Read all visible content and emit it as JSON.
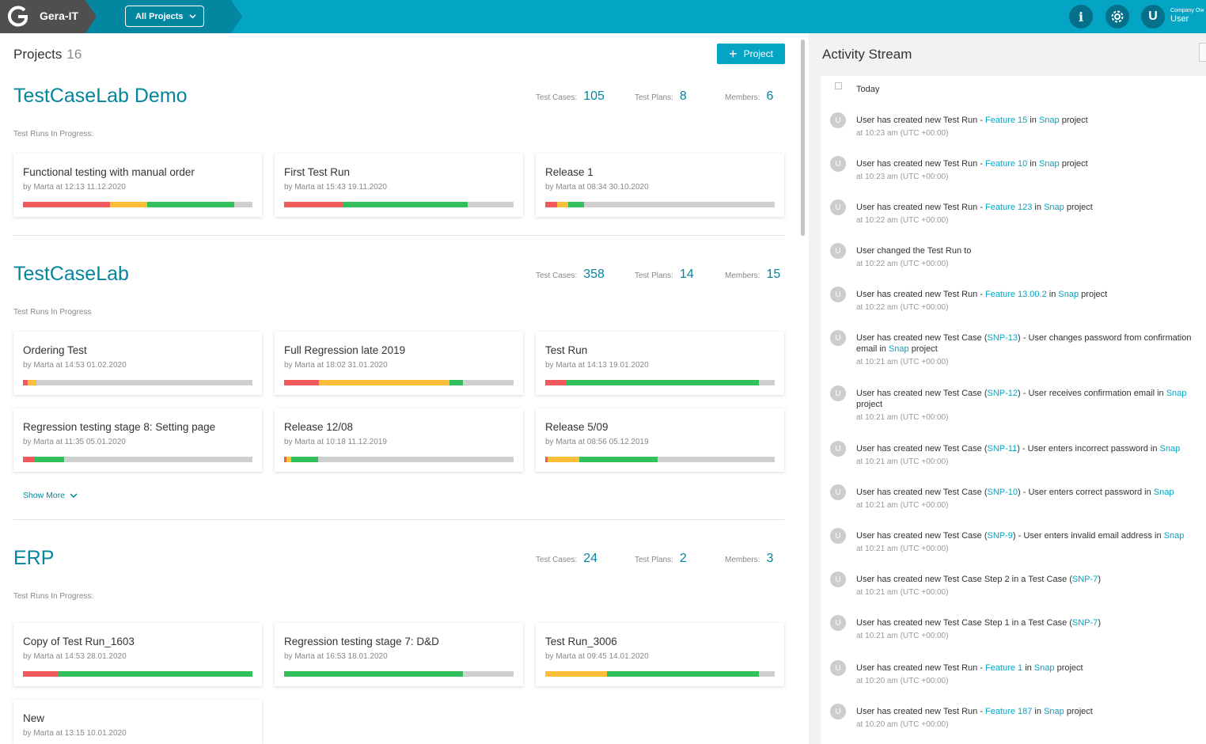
{
  "colors": {
    "accent": "#04a5c4",
    "link": "#04859e",
    "red": "#f05a5a",
    "yellow": "#fbbf3a",
    "green": "#33c05c"
  },
  "header": {
    "brand": "Gera-IT",
    "project_select": "All Projects",
    "info_icon_glyph": "i",
    "user_initial": "U",
    "company": "Company Ow",
    "user_name": "User"
  },
  "projects": {
    "title": "Projects",
    "count": "16",
    "add_button": "Project",
    "show_more": "Show More",
    "list": [
      {
        "name": "TestCaseLab Demo",
        "stats": {
          "cases_label": "Test Cases:",
          "cases": "105",
          "plans_label": "Test Plans:",
          "plans": "8",
          "members_label": "Members:",
          "members": "6"
        },
        "runs_label": "Test Runs In Progress:",
        "runs": [
          {
            "title": "Functional testing with manual order",
            "meta": "by Marta at 12:13 11.12.2020",
            "progress": {
              "red": 0.38,
              "yellow": 0.16,
              "green": 0.38
            }
          },
          {
            "title": "First Test Run",
            "meta": "by Marta at 15:43 19.11.2020",
            "progress": {
              "red": 0.26,
              "yellow": 0,
              "green": 0.54
            }
          },
          {
            "title": "Release 1",
            "meta": "by Marta at 08:34 30.10.2020",
            "progress": {
              "red": 0.05,
              "yellow": 0.05,
              "green": 0.07
            }
          }
        ]
      },
      {
        "name": "TestCaseLab",
        "stats": {
          "cases_label": "Test Cases:",
          "cases": "358",
          "plans_label": "Test Plans:",
          "plans": "14",
          "members_label": "Members:",
          "members": "15"
        },
        "runs_label": "Test Runs In Progress",
        "runs": [
          {
            "title": "Ordering Test",
            "meta": "by Marta at 14:53 01.02.2020",
            "progress": {
              "red": 0.02,
              "yellow": 0.04,
              "green": 0
            }
          },
          {
            "title": "Full Regression late 2019",
            "meta": "by Marta at 18:02 31.01.2020",
            "progress": {
              "red": 0.15,
              "yellow": 0.57,
              "green": 0.06
            }
          },
          {
            "title": "Test Run",
            "meta": "by Marta at 14:13 19.01.2020",
            "progress": {
              "red": 0.09,
              "yellow": 0,
              "green": 0.84
            }
          },
          {
            "title": "Regression testing stage 8: Setting page",
            "meta": "by Marta at 11:35 05.01.2020",
            "progress": {
              "red": 0.05,
              "yellow": 0,
              "green": 0.13
            }
          },
          {
            "title": "Release 12/08",
            "meta": "by Marta at 10:18 11.12.2019",
            "progress": {
              "red": 0.01,
              "yellow": 0.02,
              "green": 0.12
            }
          },
          {
            "title": "Release 5/09",
            "meta": "by Marta at 08:56 05.12.2019",
            "progress": {
              "red": 0.01,
              "yellow": 0.14,
              "green": 0.34
            }
          }
        ]
      },
      {
        "name": "ERP",
        "stats": {
          "cases_label": "Test Cases:",
          "cases": "24",
          "plans_label": "Test Plans:",
          "plans": "2",
          "members_label": "Members:",
          "members": "3"
        },
        "runs_label": "Test Runs In Progress:",
        "runs": [
          {
            "title": "Copy of Test Run_1603",
            "meta": "by Marta at 14:53 28.01.2020",
            "progress": {
              "red": 0.15,
              "yellow": 0,
              "green": 0.85
            }
          },
          {
            "title": "Regression testing stage 7: D&D",
            "meta": "by Marta at 16:53 18.01.2020",
            "progress": {
              "red": 0,
              "yellow": 0,
              "green": 0.78
            }
          },
          {
            "title": "Test Run_3006",
            "meta": "by Marta at 09:45 14.01.2020",
            "progress": {
              "red": 0,
              "yellow": 0.27,
              "green": 0.66
            }
          },
          {
            "title": "New",
            "meta": "by Marta at 13:15 10.01.2020",
            "progress": null
          }
        ]
      }
    ]
  },
  "activity": {
    "title": "Activity Stream",
    "today": "Today",
    "items": [
      {
        "avatar": "U",
        "text": [
          [
            "User has created new Test Run - ",
            0
          ],
          [
            "Feature 15",
            1
          ],
          [
            " in ",
            0
          ],
          [
            "Snap",
            1
          ],
          [
            " project",
            0
          ]
        ],
        "time": "at 10:23 am (UTC +00:00)"
      },
      {
        "avatar": "U",
        "text": [
          [
            "User has created new Test Run - ",
            0
          ],
          [
            "Feature 10",
            1
          ],
          [
            " in ",
            0
          ],
          [
            "Snap",
            1
          ],
          [
            " project",
            0
          ]
        ],
        "time": "at 10:23 am (UTC +00:00)"
      },
      {
        "avatar": "U",
        "text": [
          [
            "User has created new Test Run - ",
            0
          ],
          [
            "Feature 123",
            1
          ],
          [
            " in ",
            0
          ],
          [
            "Snap",
            1
          ],
          [
            " project",
            0
          ]
        ],
        "time": "at 10:22 am (UTC +00:00)"
      },
      {
        "avatar": "U",
        "text": [
          [
            "User changed the Test Run to",
            0
          ]
        ],
        "time": "at 10:22 am (UTC +00:00)"
      },
      {
        "avatar": "U",
        "text": [
          [
            "User has created new Test Run - ",
            0
          ],
          [
            "Feature 13.00.2",
            1
          ],
          [
            " in ",
            0
          ],
          [
            "Snap",
            1
          ],
          [
            " project",
            0
          ]
        ],
        "time": "at 10:22 am (UTC +00:00)"
      },
      {
        "avatar": "U",
        "text": [
          [
            "User has created new Test Case (",
            0
          ],
          [
            "SNP-13",
            1
          ],
          [
            ") - User changes password from confirmation email in ",
            0
          ],
          [
            "Snap",
            1
          ],
          [
            " project",
            0
          ]
        ],
        "time": "at 10:21 am (UTC +00:00)"
      },
      {
        "avatar": "U",
        "text": [
          [
            "User has created new Test Case (",
            0
          ],
          [
            "SNP-12",
            1
          ],
          [
            ") - User receives confirmation email in ",
            0
          ],
          [
            "Snap",
            1
          ],
          [
            " project",
            0
          ]
        ],
        "time": "at 10:21 am (UTC +00:00)"
      },
      {
        "avatar": "U",
        "text": [
          [
            "User has created new Test Case (",
            0
          ],
          [
            "SNP-11",
            1
          ],
          [
            ") - User enters incorrect password in ",
            0
          ],
          [
            "Snap",
            1
          ]
        ],
        "time": "at 10:21 am (UTC +00:00)"
      },
      {
        "avatar": "U",
        "text": [
          [
            "User has created new Test Case (",
            0
          ],
          [
            "SNP-10",
            1
          ],
          [
            ") - User enters correct password in ",
            0
          ],
          [
            "Snap",
            1
          ]
        ],
        "time": "at 10:21 am (UTC +00:00)"
      },
      {
        "avatar": "U",
        "text": [
          [
            "User has created new Test Case (",
            0
          ],
          [
            "SNP-9",
            1
          ],
          [
            ") - User enters invalid email address in ",
            0
          ],
          [
            "Snap",
            1
          ]
        ],
        "time": "at 10:21 am (UTC +00:00)"
      },
      {
        "avatar": "U",
        "text": [
          [
            "User has created new Test Case Step 2 in a Test Case (",
            0
          ],
          [
            "SNP-7",
            1
          ],
          [
            ")",
            0
          ]
        ],
        "time": "at 10:21 am (UTC +00:00)"
      },
      {
        "avatar": "U",
        "text": [
          [
            "User has created new Test Case Step 1 in a Test Case (",
            0
          ],
          [
            "SNP-7",
            1
          ],
          [
            ")",
            0
          ]
        ],
        "time": "at 10:21 am (UTC +00:00)"
      },
      {
        "avatar": "U",
        "text": [
          [
            "User has created new Test Run - ",
            0
          ],
          [
            "Feature 1",
            1
          ],
          [
            " in ",
            0
          ],
          [
            "Snap",
            1
          ],
          [
            " project",
            0
          ]
        ],
        "time": "at 10:20 am (UTC +00:00)"
      },
      {
        "avatar": "U",
        "text": [
          [
            "User has created new Test Run - ",
            0
          ],
          [
            "Feature 187",
            1
          ],
          [
            " in ",
            0
          ],
          [
            "Snap",
            1
          ],
          [
            " project",
            0
          ]
        ],
        "time": "at 10:20 am (UTC +00:00)"
      }
    ]
  }
}
